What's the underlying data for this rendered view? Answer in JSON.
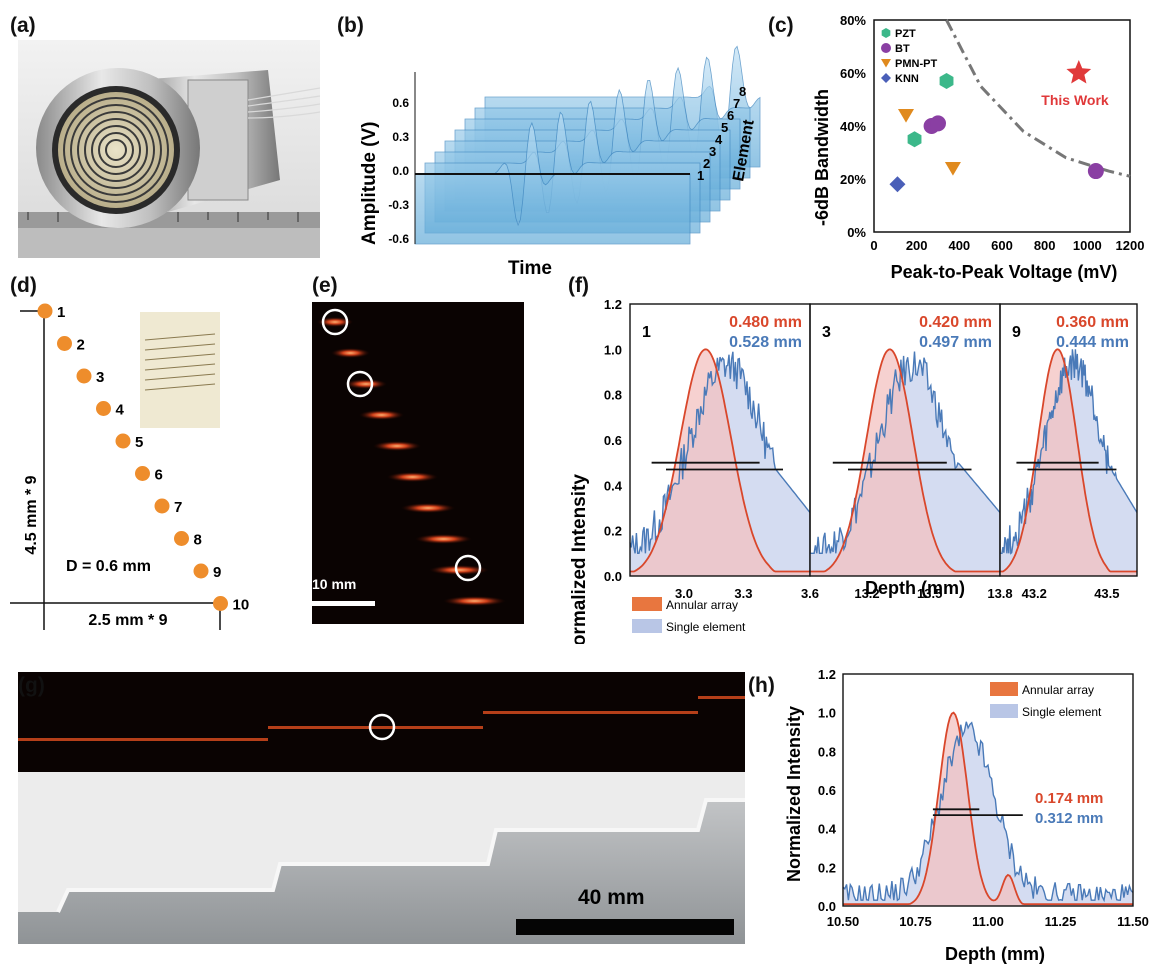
{
  "panel_labels": {
    "a": "(a)",
    "b": "(b)",
    "c": "(c)",
    "d": "(d)",
    "e": "(e)",
    "f": "(f)",
    "g": "(g)",
    "h": "(h)"
  },
  "panel_b": {
    "ylabel": "Amplitude (V)",
    "xlabel": "Time",
    "zlabel": "Element",
    "yticks": [
      "0.6",
      "0.3",
      "0.0",
      "-0.3",
      "-0.6"
    ],
    "element_ticks": [
      "1",
      "2",
      "3",
      "4",
      "5",
      "6",
      "7",
      "8"
    ]
  },
  "panel_c": {
    "ylabel": "-6dB Bandwidth",
    "xlabel": "Peak-to-Peak Voltage (mV)",
    "annotation": "This Work",
    "colors": {
      "PZT": "#3cb88a",
      "BT": "#8a3fa3",
      "PMN-PT": "#e08a1e",
      "KNN": "#4a5fb8",
      "This Work": "#e0393a"
    }
  },
  "panel_d": {
    "points": [
      "1",
      "2",
      "3",
      "4",
      "5",
      "6",
      "7",
      "8",
      "9",
      "10"
    ],
    "vertical_label": "4.5 mm * 9",
    "horizontal_label": "2.5 mm * 9",
    "diameter_label": "D = 0.6 mm"
  },
  "panel_e": {
    "scalebar": "10 mm"
  },
  "panel_f": {
    "ylabel": "Normalized Intensity",
    "xlabel": "Depth (mm)",
    "legend": [
      "Annular array",
      "Single element"
    ],
    "yticks": [
      "0.0",
      "0.2",
      "0.4",
      "0.6",
      "0.8",
      "1.0",
      "1.2"
    ],
    "subpanels": [
      {
        "id": "1",
        "red": "0.480 mm",
        "blue": "0.528 mm",
        "xticks": [
          "3.0",
          "3.3",
          "3.6"
        ]
      },
      {
        "id": "3",
        "red": "0.420 mm",
        "blue": "0.497 mm",
        "xticks": [
          "13.2",
          "13.5",
          "13.8"
        ]
      },
      {
        "id": "9",
        "red": "0.360 mm",
        "blue": "0.444 mm",
        "xticks": [
          "43.2",
          "43.5"
        ]
      }
    ]
  },
  "panel_g": {
    "scalebar": "40 mm"
  },
  "panel_h": {
    "ylabel": "Normalized Intensity",
    "xlabel": "Depth (mm)",
    "legend": [
      "Annular array",
      "Single element"
    ],
    "red": "0.174 mm",
    "blue": "0.312 mm",
    "yticks": [
      "0.0",
      "0.2",
      "0.4",
      "0.6",
      "0.8",
      "1.0",
      "1.2"
    ],
    "xticks": [
      "10.50",
      "10.75",
      "11.00",
      "11.25",
      "11.50"
    ]
  },
  "chart_data": [
    {
      "type": "scatter",
      "title": "",
      "xlabel": "Peak-to-Peak Voltage (mV)",
      "ylabel": "-6dB Bandwidth",
      "xlim": [
        0,
        1200
      ],
      "ylim": [
        0,
        80
      ],
      "xticks": [
        "0",
        "200",
        "400",
        "600",
        "800",
        "1000",
        "1200"
      ],
      "yticks": [
        "0%",
        "20%",
        "40%",
        "60%",
        "80%"
      ],
      "legend_position": "top-left",
      "series": [
        {
          "name": "PZT",
          "marker": "hexagon",
          "points": [
            [
              190,
              35
            ],
            [
              340,
              57
            ]
          ]
        },
        {
          "name": "BT",
          "marker": "circle",
          "points": [
            [
              270,
              40
            ],
            [
              300,
              41
            ],
            [
              1040,
              23
            ]
          ]
        },
        {
          "name": "PMN-PT",
          "marker": "triangle-down",
          "points": [
            [
              150,
              44
            ],
            [
              370,
              24
            ]
          ]
        },
        {
          "name": "KNN",
          "marker": "diamond",
          "points": [
            [
              110,
              18
            ]
          ]
        },
        {
          "name": "This Work",
          "marker": "star",
          "points": [
            [
              960,
              60
            ]
          ]
        }
      ],
      "trend_line": [
        [
          340,
          80
        ],
        [
          500,
          55
        ],
        [
          700,
          38
        ],
        [
          900,
          28
        ],
        [
          1100,
          23
        ],
        [
          1200,
          21
        ]
      ]
    }
  ]
}
